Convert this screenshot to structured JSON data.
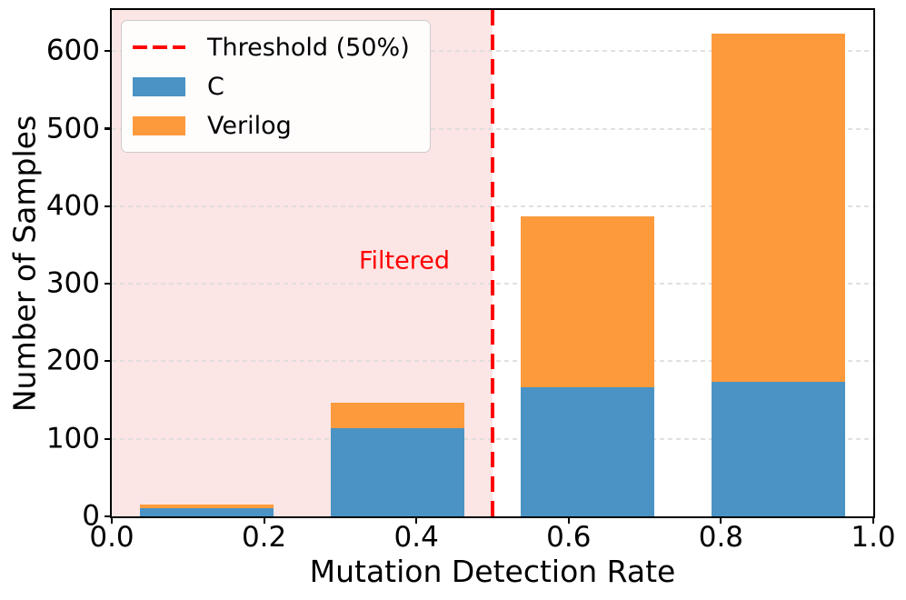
{
  "chart_data": {
    "type": "bar",
    "stacked": true,
    "title": "",
    "xlabel": "Mutation Detection Rate",
    "ylabel": "Number of Samples",
    "xlim": [
      0.0,
      1.0
    ],
    "ylim": [
      0,
      653
    ],
    "grid": "horizontal dashed",
    "legend_position": "upper left",
    "x_ticks": [
      "0.0",
      "0.2",
      "0.4",
      "0.6",
      "0.8",
      "1.0"
    ],
    "x_tick_values": [
      0.0,
      0.2,
      0.4,
      0.6,
      0.8,
      1.0
    ],
    "y_ticks": [
      "0",
      "100",
      "200",
      "300",
      "400",
      "500",
      "600"
    ],
    "y_tick_values": [
      0,
      100,
      200,
      300,
      400,
      500,
      600
    ],
    "bin_centers": [
      0.125,
      0.375,
      0.625,
      0.875
    ],
    "bar_width": 0.175,
    "series": [
      {
        "name": "C",
        "color": "#4A93C4",
        "values": [
          10,
          114,
          167,
          174
        ]
      },
      {
        "name": "Verilog",
        "color": "#FD9A3C",
        "values": [
          5,
          33,
          220,
          448
        ]
      }
    ],
    "totals": [
      15,
      147,
      387,
      622
    ],
    "threshold": {
      "value": 0.5,
      "label": "Threshold (50%)",
      "color": "#FF0000"
    },
    "filtered_region": {
      "from": 0.0,
      "to": 0.5,
      "fill": "#FCE5E5",
      "label": "Filtered",
      "text_color": "#FF0000"
    }
  }
}
